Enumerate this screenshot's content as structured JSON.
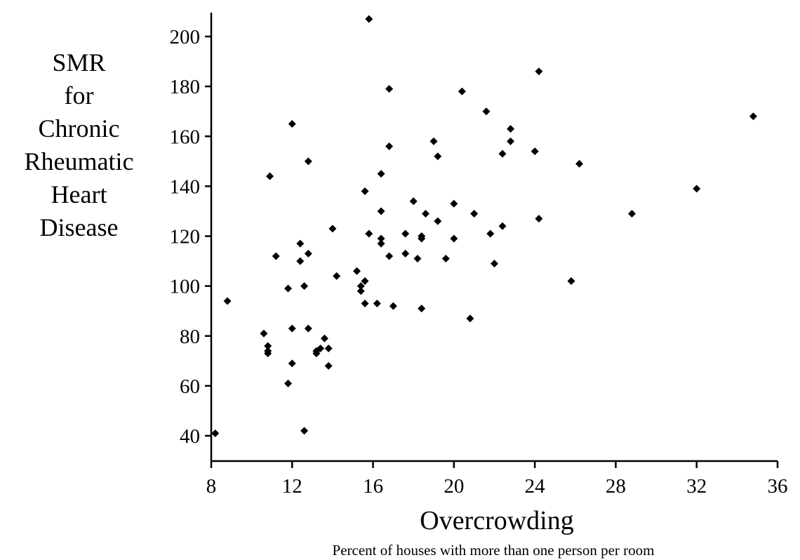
{
  "chart_data": {
    "type": "scatter",
    "ylabel_lines": [
      "SMR",
      "for",
      "Chronic",
      "Rheumatic",
      "Heart",
      "Disease"
    ],
    "xlabel": "Overcrowding",
    "xlabel_sub": "Percent of houses with more than one person per room",
    "xlim": [
      8,
      36
    ],
    "ylim": [
      30,
      210
    ],
    "xticks": [
      8,
      12,
      16,
      20,
      24,
      28,
      32,
      36
    ],
    "yticks": [
      40,
      60,
      80,
      100,
      120,
      140,
      160,
      180,
      200
    ],
    "marker": "diamond",
    "marker_color": "#000000",
    "points": [
      {
        "x": 8.2,
        "y": 41
      },
      {
        "x": 8.8,
        "y": 94
      },
      {
        "x": 10.6,
        "y": 81
      },
      {
        "x": 10.8,
        "y": 76
      },
      {
        "x": 10.8,
        "y": 74
      },
      {
        "x": 10.8,
        "y": 73
      },
      {
        "x": 10.9,
        "y": 144
      },
      {
        "x": 11.2,
        "y": 112
      },
      {
        "x": 11.8,
        "y": 99
      },
      {
        "x": 11.8,
        "y": 61
      },
      {
        "x": 12.0,
        "y": 165
      },
      {
        "x": 12.0,
        "y": 83
      },
      {
        "x": 12.0,
        "y": 69
      },
      {
        "x": 12.4,
        "y": 117
      },
      {
        "x": 12.4,
        "y": 110
      },
      {
        "x": 12.6,
        "y": 100
      },
      {
        "x": 12.6,
        "y": 42
      },
      {
        "x": 12.8,
        "y": 150
      },
      {
        "x": 12.8,
        "y": 113
      },
      {
        "x": 12.8,
        "y": 83
      },
      {
        "x": 13.2,
        "y": 74
      },
      {
        "x": 13.2,
        "y": 73
      },
      {
        "x": 13.4,
        "y": 75
      },
      {
        "x": 13.6,
        "y": 79
      },
      {
        "x": 13.8,
        "y": 75
      },
      {
        "x": 13.8,
        "y": 68
      },
      {
        "x": 14.0,
        "y": 123
      },
      {
        "x": 14.2,
        "y": 104
      },
      {
        "x": 15.2,
        "y": 106
      },
      {
        "x": 15.4,
        "y": 100
      },
      {
        "x": 15.4,
        "y": 98
      },
      {
        "x": 15.6,
        "y": 138
      },
      {
        "x": 15.6,
        "y": 102
      },
      {
        "x": 15.6,
        "y": 93
      },
      {
        "x": 15.8,
        "y": 207
      },
      {
        "x": 15.8,
        "y": 121
      },
      {
        "x": 16.2,
        "y": 93
      },
      {
        "x": 16.4,
        "y": 145
      },
      {
        "x": 16.4,
        "y": 130
      },
      {
        "x": 16.4,
        "y": 119
      },
      {
        "x": 16.4,
        "y": 117
      },
      {
        "x": 16.8,
        "y": 179
      },
      {
        "x": 16.8,
        "y": 156
      },
      {
        "x": 16.8,
        "y": 112
      },
      {
        "x": 17.0,
        "y": 92
      },
      {
        "x": 17.6,
        "y": 121
      },
      {
        "x": 17.6,
        "y": 113
      },
      {
        "x": 18.0,
        "y": 134
      },
      {
        "x": 18.2,
        "y": 111
      },
      {
        "x": 18.4,
        "y": 120
      },
      {
        "x": 18.4,
        "y": 119
      },
      {
        "x": 18.4,
        "y": 91
      },
      {
        "x": 18.6,
        "y": 129
      },
      {
        "x": 19.0,
        "y": 158
      },
      {
        "x": 19.2,
        "y": 152
      },
      {
        "x": 19.2,
        "y": 126
      },
      {
        "x": 19.6,
        "y": 111
      },
      {
        "x": 20.0,
        "y": 133
      },
      {
        "x": 20.0,
        "y": 119
      },
      {
        "x": 20.4,
        "y": 178
      },
      {
        "x": 20.8,
        "y": 87
      },
      {
        "x": 21.0,
        "y": 129
      },
      {
        "x": 21.6,
        "y": 170
      },
      {
        "x": 21.8,
        "y": 121
      },
      {
        "x": 22.0,
        "y": 109
      },
      {
        "x": 22.4,
        "y": 153
      },
      {
        "x": 22.4,
        "y": 124
      },
      {
        "x": 22.8,
        "y": 163
      },
      {
        "x": 22.8,
        "y": 158
      },
      {
        "x": 24.0,
        "y": 154
      },
      {
        "x": 24.2,
        "y": 186
      },
      {
        "x": 24.2,
        "y": 127
      },
      {
        "x": 25.8,
        "y": 102
      },
      {
        "x": 26.2,
        "y": 149
      },
      {
        "x": 28.8,
        "y": 129
      },
      {
        "x": 32.0,
        "y": 139
      },
      {
        "x": 34.8,
        "y": 168
      }
    ]
  }
}
